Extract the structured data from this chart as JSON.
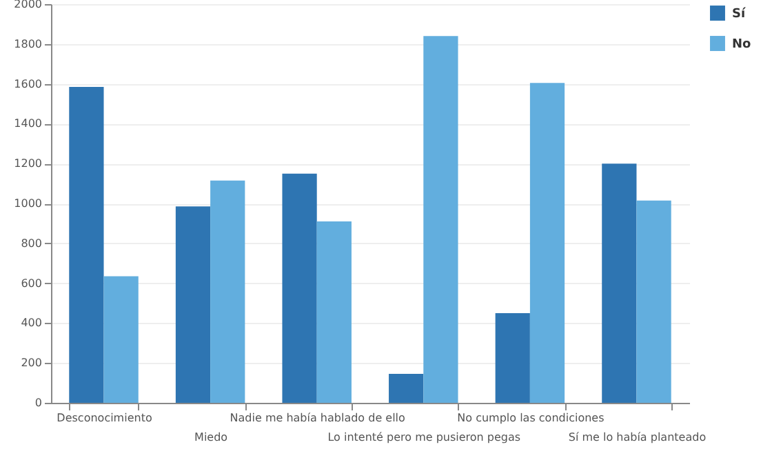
{
  "chart_data": {
    "type": "bar",
    "categories": [
      "Desconocimiento",
      "Miedo",
      "Nadie me había hablado de ello",
      "Lo intenté pero me pusieron pegas",
      "No cumplo las condiciones",
      "Sí me lo había planteado"
    ],
    "series": [
      {
        "name": "Sí",
        "color": "#2e75b2",
        "values": [
          1585,
          985,
          1150,
          145,
          450,
          1200
        ]
      },
      {
        "name": "No",
        "color": "#62aede",
        "values": [
          635,
          1115,
          910,
          1840,
          1605,
          1015
        ]
      }
    ],
    "ylim": [
      0,
      2000
    ],
    "yticks": [
      0,
      200,
      400,
      600,
      800,
      1000,
      1200,
      1400,
      1600,
      1800,
      2000
    ],
    "grid": "y",
    "legend": "top right"
  }
}
